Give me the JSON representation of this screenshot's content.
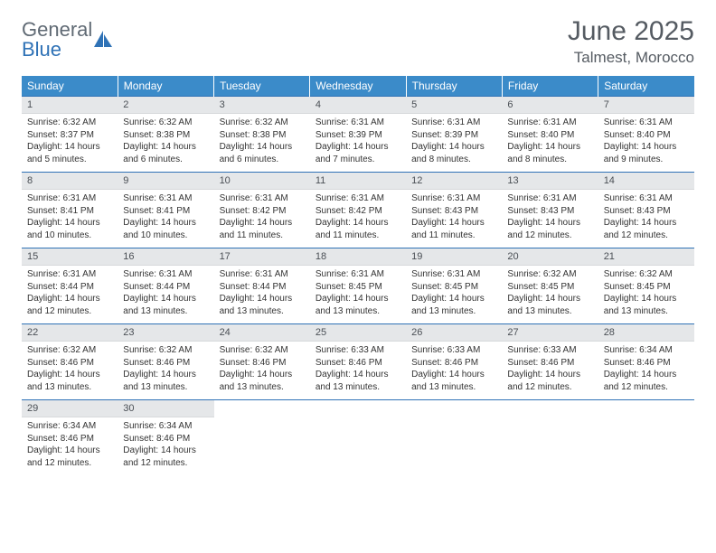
{
  "logo": {
    "general": "General",
    "blue": "Blue"
  },
  "header": {
    "title": "June 2025",
    "location": "Talmest, Morocco"
  },
  "colors": {
    "header_bg": "#3b8bc9",
    "header_text": "#ffffff",
    "daynum_bg": "#e5e7e9",
    "row_border": "#2f72b6",
    "logo_general": "#606a74",
    "logo_blue": "#2f72b6"
  },
  "weekdays": [
    "Sunday",
    "Monday",
    "Tuesday",
    "Wednesday",
    "Thursday",
    "Friday",
    "Saturday"
  ],
  "labels": {
    "sunrise": "Sunrise: ",
    "sunset": "Sunset: ",
    "daylight": "Daylight: "
  },
  "weeks": [
    [
      {
        "n": "1",
        "sr": "6:32 AM",
        "ss": "8:37 PM",
        "dl": "14 hours and 5 minutes."
      },
      {
        "n": "2",
        "sr": "6:32 AM",
        "ss": "8:38 PM",
        "dl": "14 hours and 6 minutes."
      },
      {
        "n": "3",
        "sr": "6:32 AM",
        "ss": "8:38 PM",
        "dl": "14 hours and 6 minutes."
      },
      {
        "n": "4",
        "sr": "6:31 AM",
        "ss": "8:39 PM",
        "dl": "14 hours and 7 minutes."
      },
      {
        "n": "5",
        "sr": "6:31 AM",
        "ss": "8:39 PM",
        "dl": "14 hours and 8 minutes."
      },
      {
        "n": "6",
        "sr": "6:31 AM",
        "ss": "8:40 PM",
        "dl": "14 hours and 8 minutes."
      },
      {
        "n": "7",
        "sr": "6:31 AM",
        "ss": "8:40 PM",
        "dl": "14 hours and 9 minutes."
      }
    ],
    [
      {
        "n": "8",
        "sr": "6:31 AM",
        "ss": "8:41 PM",
        "dl": "14 hours and 10 minutes."
      },
      {
        "n": "9",
        "sr": "6:31 AM",
        "ss": "8:41 PM",
        "dl": "14 hours and 10 minutes."
      },
      {
        "n": "10",
        "sr": "6:31 AM",
        "ss": "8:42 PM",
        "dl": "14 hours and 11 minutes."
      },
      {
        "n": "11",
        "sr": "6:31 AM",
        "ss": "8:42 PM",
        "dl": "14 hours and 11 minutes."
      },
      {
        "n": "12",
        "sr": "6:31 AM",
        "ss": "8:43 PM",
        "dl": "14 hours and 11 minutes."
      },
      {
        "n": "13",
        "sr": "6:31 AM",
        "ss": "8:43 PM",
        "dl": "14 hours and 12 minutes."
      },
      {
        "n": "14",
        "sr": "6:31 AM",
        "ss": "8:43 PM",
        "dl": "14 hours and 12 minutes."
      }
    ],
    [
      {
        "n": "15",
        "sr": "6:31 AM",
        "ss": "8:44 PM",
        "dl": "14 hours and 12 minutes."
      },
      {
        "n": "16",
        "sr": "6:31 AM",
        "ss": "8:44 PM",
        "dl": "14 hours and 13 minutes."
      },
      {
        "n": "17",
        "sr": "6:31 AM",
        "ss": "8:44 PM",
        "dl": "14 hours and 13 minutes."
      },
      {
        "n": "18",
        "sr": "6:31 AM",
        "ss": "8:45 PM",
        "dl": "14 hours and 13 minutes."
      },
      {
        "n": "19",
        "sr": "6:31 AM",
        "ss": "8:45 PM",
        "dl": "14 hours and 13 minutes."
      },
      {
        "n": "20",
        "sr": "6:32 AM",
        "ss": "8:45 PM",
        "dl": "14 hours and 13 minutes."
      },
      {
        "n": "21",
        "sr": "6:32 AM",
        "ss": "8:45 PM",
        "dl": "14 hours and 13 minutes."
      }
    ],
    [
      {
        "n": "22",
        "sr": "6:32 AM",
        "ss": "8:46 PM",
        "dl": "14 hours and 13 minutes."
      },
      {
        "n": "23",
        "sr": "6:32 AM",
        "ss": "8:46 PM",
        "dl": "14 hours and 13 minutes."
      },
      {
        "n": "24",
        "sr": "6:32 AM",
        "ss": "8:46 PM",
        "dl": "14 hours and 13 minutes."
      },
      {
        "n": "25",
        "sr": "6:33 AM",
        "ss": "8:46 PM",
        "dl": "14 hours and 13 minutes."
      },
      {
        "n": "26",
        "sr": "6:33 AM",
        "ss": "8:46 PM",
        "dl": "14 hours and 13 minutes."
      },
      {
        "n": "27",
        "sr": "6:33 AM",
        "ss": "8:46 PM",
        "dl": "14 hours and 12 minutes."
      },
      {
        "n": "28",
        "sr": "6:34 AM",
        "ss": "8:46 PM",
        "dl": "14 hours and 12 minutes."
      }
    ],
    [
      {
        "n": "29",
        "sr": "6:34 AM",
        "ss": "8:46 PM",
        "dl": "14 hours and 12 minutes."
      },
      {
        "n": "30",
        "sr": "6:34 AM",
        "ss": "8:46 PM",
        "dl": "14 hours and 12 minutes."
      },
      null,
      null,
      null,
      null,
      null
    ]
  ]
}
